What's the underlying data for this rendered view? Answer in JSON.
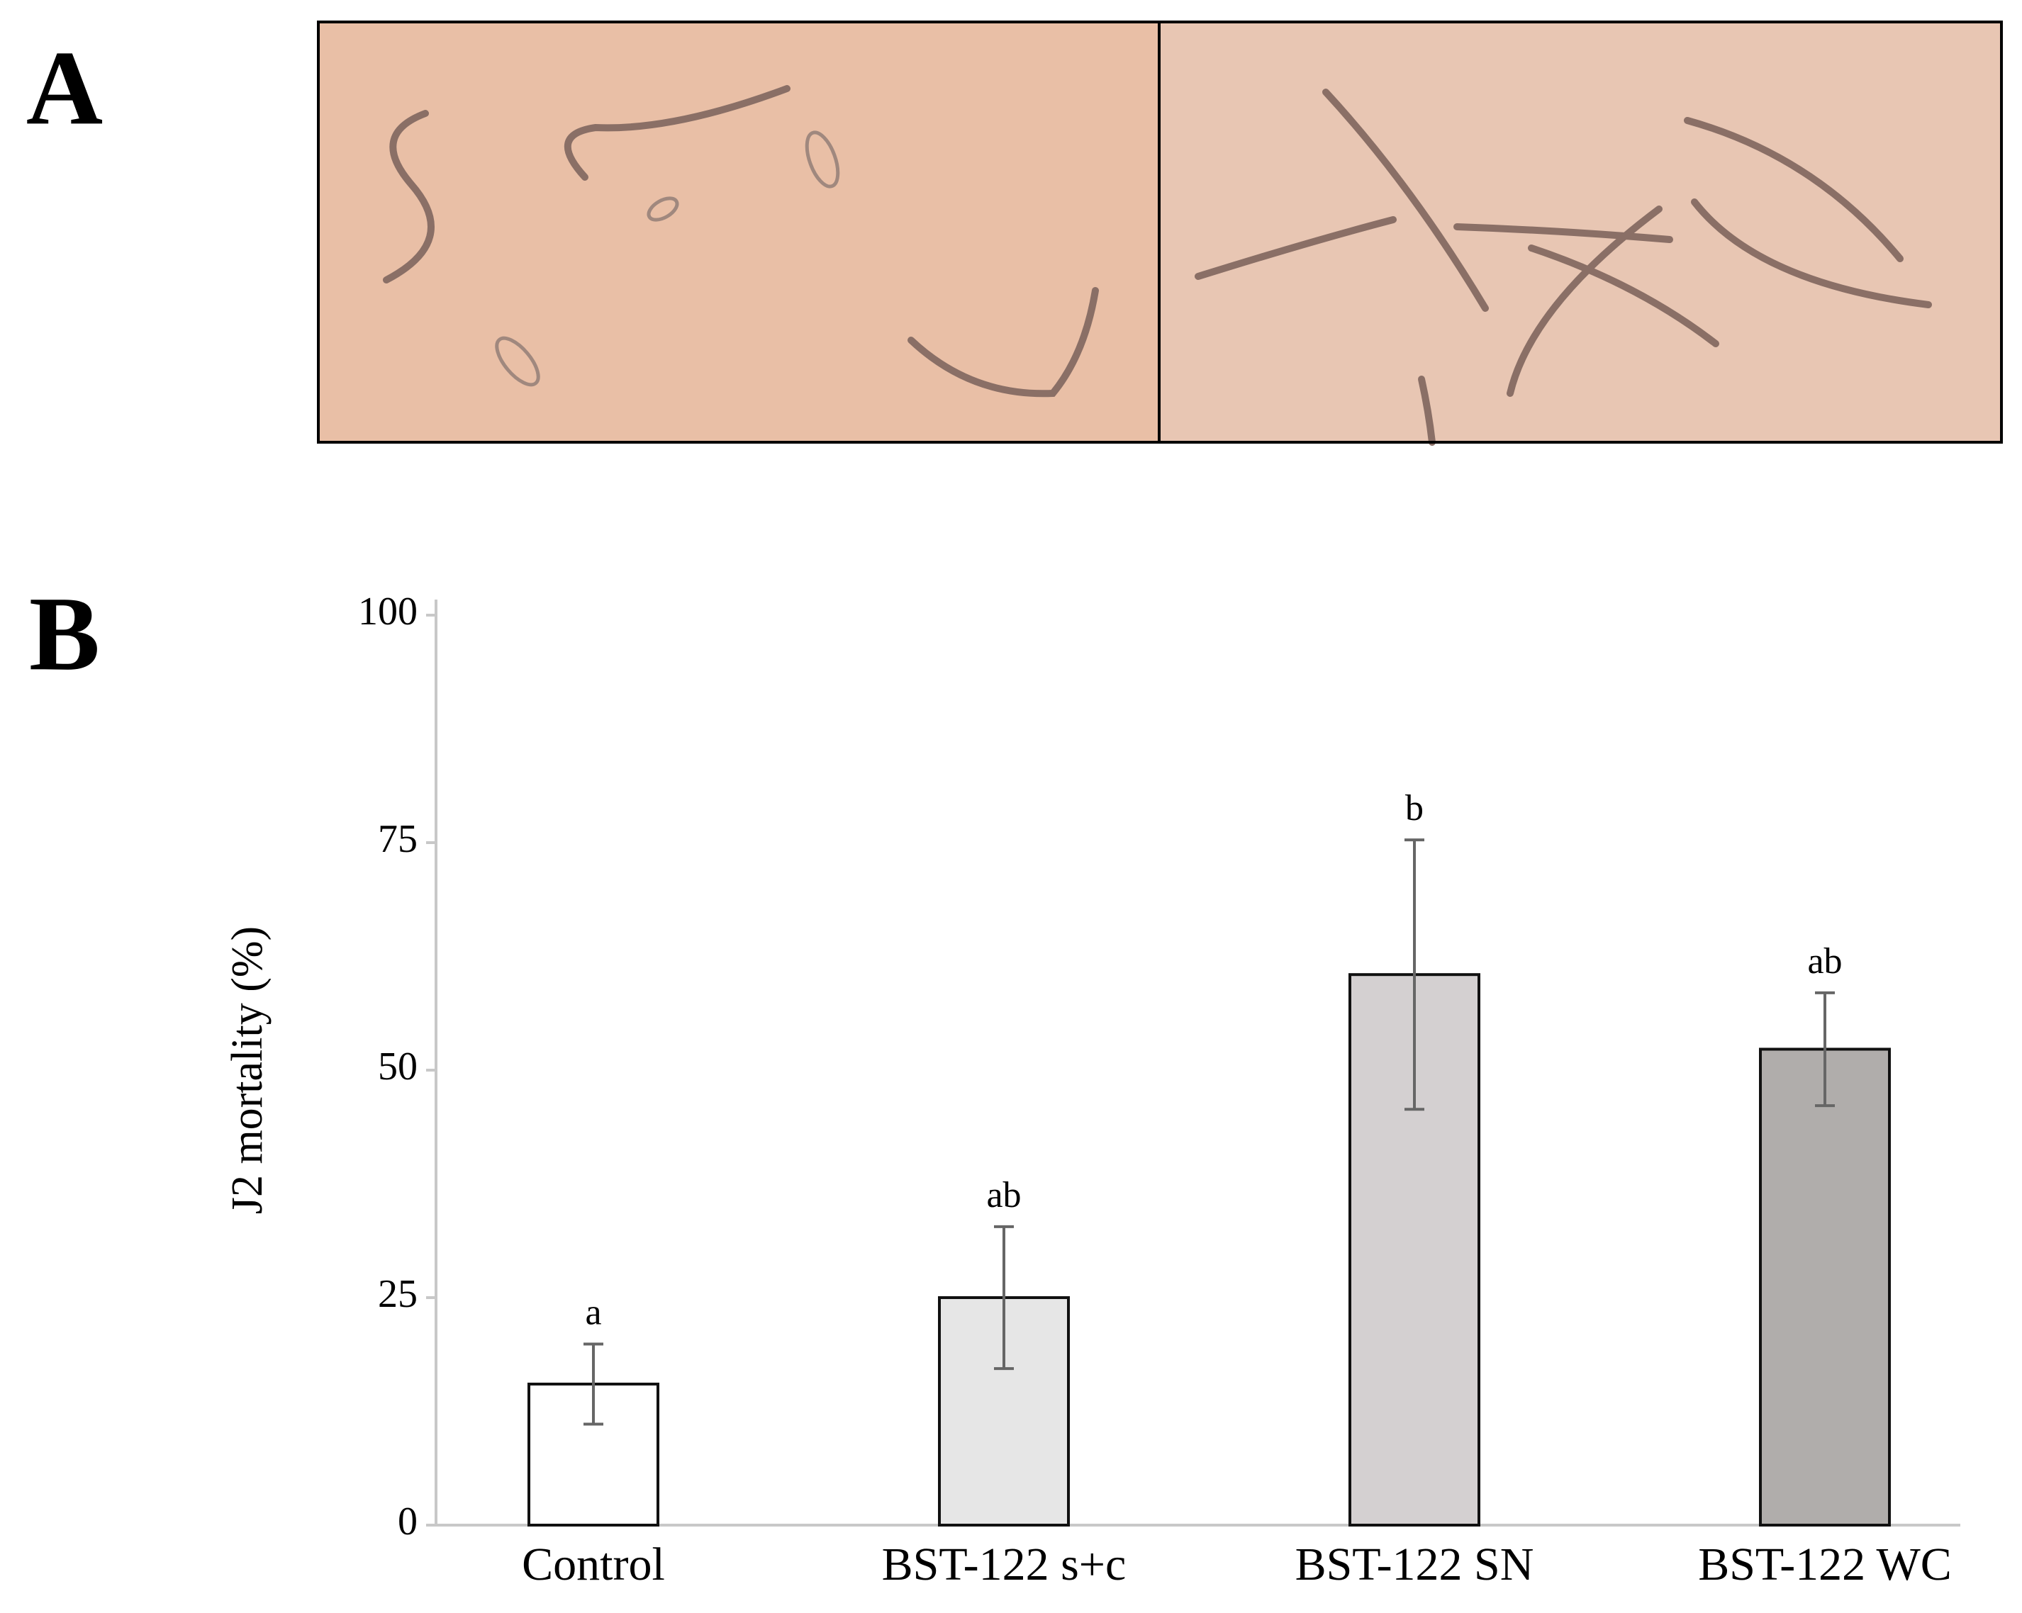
{
  "panel_labels": [
    "A",
    "B"
  ],
  "chart_data": {
    "type": "bar",
    "ylabel": "J2 mortality (%)",
    "categories": [
      "Control",
      "BST-122 s+c",
      "BST-122 SN",
      "BST-122 WC"
    ],
    "values": [
      15.5,
      25,
      60.5,
      52.3
    ],
    "errors": [
      4.4,
      7.8,
      14.8,
      6.2
    ],
    "annotations": [
      "a",
      "ab",
      "b",
      "ab"
    ],
    "colors": [
      "#ffffff",
      "#e6e6e6",
      "#d4d0d1",
      "#b0adab"
    ],
    "ylim": [
      0,
      100
    ],
    "yticks": [
      0,
      25,
      50,
      75,
      100
    ],
    "grid": false
  }
}
